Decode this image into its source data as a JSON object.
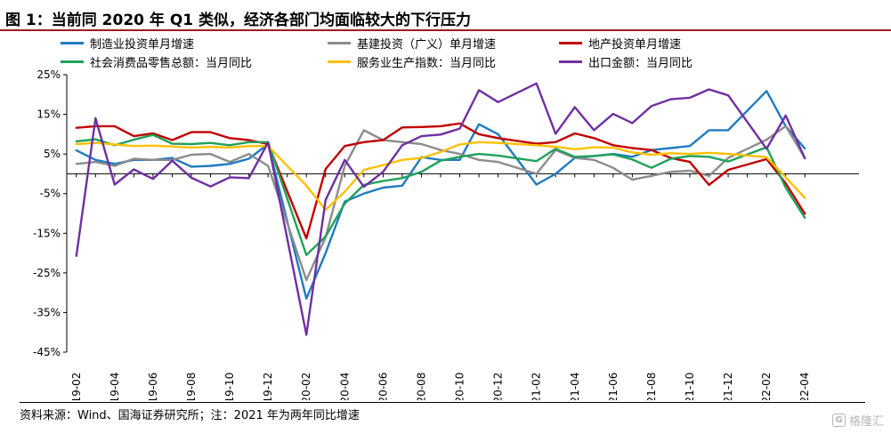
{
  "title": "图 1：当前同 2020 年 Q1 类似，经济各部门均面临较大的下行压力",
  "source": "资料来源：Wind、国海证券研究所；注：2021 年为两年同比增速",
  "watermark": {
    "text": "格隆汇",
    "icon": "G"
  },
  "chart_data": {
    "type": "line",
    "x": [
      "19-02",
      "19-03",
      "19-04",
      "19-05",
      "19-06",
      "19-07",
      "19-08",
      "19-09",
      "19-10",
      "19-11",
      "19-12",
      "20-01",
      "20-02",
      "20-03",
      "20-04",
      "20-05",
      "20-06",
      "20-07",
      "20-08",
      "20-09",
      "20-10",
      "20-11",
      "20-12",
      "21-01",
      "21-02",
      "21-03",
      "21-04",
      "21-05",
      "21-06",
      "21-07",
      "21-08",
      "21-09",
      "21-10",
      "21-11",
      "21-12",
      "22-01",
      "22-02",
      "22-03",
      "22-04"
    ],
    "xtick_labels": [
      "19-02",
      "19-04",
      "19-06",
      "19-08",
      "19-10",
      "19-12",
      "20-02",
      "20-04",
      "20-06",
      "20-08",
      "20-10",
      "20-12",
      "21-02",
      "21-04",
      "21-06",
      "21-08",
      "21-10",
      "21-12",
      "22-02",
      "22-04"
    ],
    "ylim": [
      -45,
      25
    ],
    "yticks": [
      25,
      15,
      5,
      -5,
      -15,
      -25,
      -35,
      -45
    ],
    "ytick_labels": [
      "25%",
      "15%",
      "5%",
      "-5%",
      "-15%",
      "-25%",
      "-35%",
      "-45%"
    ],
    "legend_position": "top",
    "series": [
      {
        "name": "制造业投资单月增速",
        "color": "#1F7BC1",
        "values": [
          5.9,
          3.5,
          2.5,
          3.5,
          3.5,
          4.0,
          1.8,
          2.0,
          2.5,
          3.8,
          7.5,
          null,
          -31.5,
          -20.0,
          -7.0,
          -5.0,
          -3.5,
          -3.0,
          4.2,
          3.5,
          3.5,
          12.5,
          10.0,
          null,
          -2.7,
          0.0,
          4.0,
          4.5,
          5.0,
          4.3,
          6.0,
          6.5,
          7.0,
          11.0,
          11.0,
          null,
          20.9,
          12.0,
          6.4
        ]
      },
      {
        "name": "基建投资（广义）单月增速",
        "color": "#8C8C8C",
        "values": [
          2.5,
          3.0,
          2.0,
          3.8,
          3.5,
          3.5,
          4.8,
          5.0,
          3.0,
          5.0,
          2.0,
          null,
          -26.8,
          -16.0,
          2.0,
          11.0,
          8.5,
          8.0,
          7.5,
          6.0,
          5.0,
          3.5,
          3.0,
          null,
          0.0,
          6.0,
          4.0,
          3.5,
          1.5,
          -1.5,
          -0.5,
          0.5,
          0.8,
          -0.5,
          4.0,
          null,
          8.6,
          12.0,
          4.0
        ]
      },
      {
        "name": "地产投资单月增速",
        "color": "#C00000",
        "values": [
          11.6,
          12.0,
          12.0,
          9.5,
          10.2,
          8.5,
          10.5,
          10.5,
          9.0,
          8.5,
          7.5,
          null,
          -16.3,
          1.2,
          7.0,
          8.0,
          8.5,
          11.7,
          11.8,
          12.0,
          12.7,
          10.0,
          9.0,
          null,
          7.6,
          8.0,
          10.2,
          9.0,
          7.2,
          6.5,
          6.0,
          4.0,
          3.0,
          -2.8,
          1.0,
          null,
          3.7,
          -2.4,
          -10.1
        ]
      },
      {
        "name": "社会消费品零售总额：当月同比",
        "color": "#1FA15A",
        "values": [
          8.2,
          8.7,
          7.2,
          8.6,
          9.8,
          7.6,
          7.5,
          7.8,
          7.2,
          8.0,
          8.0,
          null,
          -20.5,
          -15.8,
          -7.5,
          -2.8,
          -1.8,
          -1.1,
          0.5,
          3.3,
          4.3,
          5.0,
          4.6,
          null,
          3.2,
          6.3,
          4.3,
          4.5,
          4.9,
          3.6,
          1.5,
          3.8,
          4.5,
          4.3,
          3.1,
          null,
          6.7,
          -3.5,
          -11.1
        ]
      },
      {
        "name": "服务业生产指数：当月同比",
        "color": "#FFC000",
        "values": [
          7.5,
          7.8,
          7.4,
          7.0,
          7.1,
          6.9,
          6.6,
          6.8,
          6.6,
          7.0,
          7.0,
          null,
          -3.0,
          -9.1,
          -4.5,
          1.0,
          2.2,
          3.5,
          4.0,
          5.5,
          7.4,
          8.0,
          7.8,
          null,
          7.2,
          6.8,
          6.2,
          6.7,
          6.6,
          5.4,
          4.8,
          5.2,
          5.0,
          5.3,
          5.0,
          null,
          4.2,
          -0.9,
          -6.1
        ]
      },
      {
        "name": "出口金额：当月同比",
        "color": "#7030A0",
        "values": [
          -20.7,
          14.0,
          -2.7,
          1.1,
          -1.3,
          3.3,
          -1.0,
          -3.2,
          -0.9,
          -1.1,
          7.9,
          null,
          -40.6,
          -6.6,
          3.5,
          -3.3,
          0.5,
          7.2,
          9.5,
          9.9,
          11.4,
          21.1,
          18.1,
          null,
          22.8,
          10.1,
          16.8,
          11.0,
          15.1,
          12.8,
          17.1,
          18.8,
          19.2,
          21.3,
          19.8,
          null,
          6.3,
          14.7,
          3.9
        ]
      }
    ]
  }
}
